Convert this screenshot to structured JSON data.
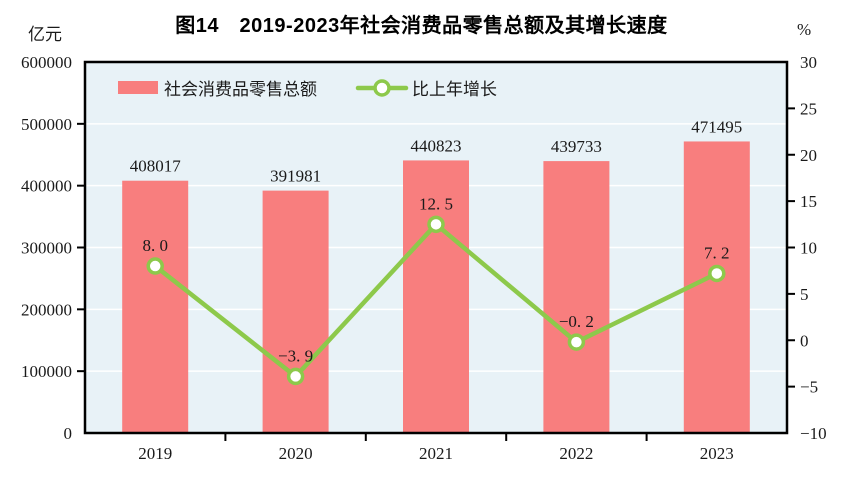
{
  "title": "图14　2019-2023年社会消费品零售总额及其增长速度",
  "left_axis": {
    "unit": "亿元",
    "tick_labels": [
      "0",
      "100000",
      "200000",
      "300000",
      "400000",
      "500000",
      "600000"
    ]
  },
  "right_axis": {
    "unit": "%",
    "tick_labels": [
      "−10",
      "−5",
      "0",
      "5",
      "10",
      "15",
      "20",
      "25",
      "30"
    ]
  },
  "legend": {
    "bar_label": "社会消费品零售总额",
    "line_label": "比上年增长"
  },
  "chart_data": {
    "type": "bar",
    "combo": "bar+line",
    "title": "图14 2019-2023年社会消费品零售总额及其增长速度",
    "categories": [
      "2019",
      "2020",
      "2021",
      "2022",
      "2023"
    ],
    "series": [
      {
        "name": "社会消费品零售总额",
        "type": "bar",
        "axis": "left",
        "values": [
          408017,
          391981,
          440823,
          439733,
          471495
        ],
        "labels": [
          "408017",
          "391981",
          "440823",
          "439733",
          "471495"
        ]
      },
      {
        "name": "比上年增长",
        "type": "line",
        "axis": "right",
        "values": [
          8.0,
          -3.9,
          12.5,
          -0.2,
          7.2
        ],
        "labels": [
          "8. 0",
          "−3. 9",
          "12. 5",
          "−0. 2",
          "7. 2"
        ]
      }
    ],
    "ylabel": "亿元",
    "y2label": "%",
    "ylim": [
      0,
      600000
    ],
    "ytick_step": 100000,
    "y2lim": [
      -10,
      30
    ],
    "y2tick_step": 5,
    "grid": true,
    "legend_position": "top-left-inside"
  },
  "colors": {
    "bar": "#F87E7E",
    "line": "#8DC94B",
    "marker_fill": "#FFFFFF",
    "plot_background": "#E8F2F7",
    "gridline": "#FFFFFF",
    "axis": "#000000",
    "text": "#1A1A1A"
  }
}
